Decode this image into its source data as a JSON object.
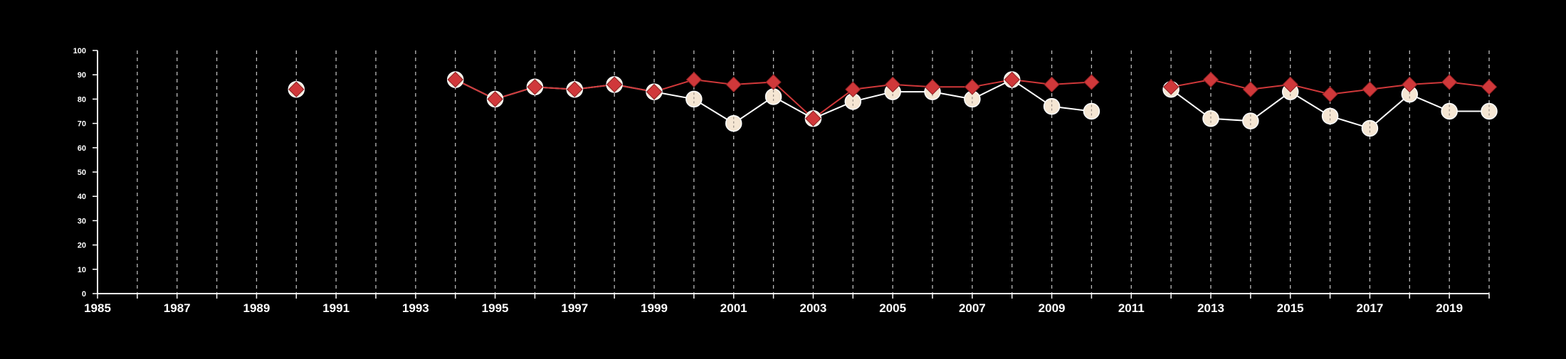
{
  "chart_data": {
    "type": "line",
    "background": "#000000",
    "grid": {
      "vertical": true,
      "horizontal": false,
      "style": "dashed",
      "color": "#bbbbbb"
    },
    "x_range": [
      1985,
      2020
    ],
    "ylim": [
      0,
      100
    ],
    "y_ticks": [
      0,
      10,
      20,
      30,
      40,
      50,
      60,
      70,
      80,
      90,
      100
    ],
    "x_minor_ticks": [
      1985,
      1986,
      1987,
      1988,
      1989,
      1990,
      1991,
      1992,
      1993,
      1994,
      1995,
      1996,
      1997,
      1998,
      1999,
      2000,
      2001,
      2002,
      2003,
      2004,
      2005,
      2006,
      2007,
      2008,
      2009,
      2010,
      2011,
      2012,
      2013,
      2014,
      2015,
      2016,
      2017,
      2018,
      2019,
      2020
    ],
    "x_labels": [
      1985,
      1987,
      1989,
      1991,
      1993,
      1995,
      1997,
      1999,
      2001,
      2003,
      2005,
      2007,
      2009,
      2011,
      2013,
      2015,
      2017,
      2019
    ],
    "series": [
      {
        "marker": "circle",
        "color": "#ffffff",
        "fill": "#f5e6d3",
        "points": [
          [
            1990,
            84
          ],
          [
            1994,
            88
          ],
          [
            1995,
            80
          ],
          [
            1996,
            85
          ],
          [
            1997,
            84
          ],
          [
            1998,
            86
          ],
          [
            1999,
            83
          ],
          [
            2000,
            80
          ],
          [
            2001,
            70
          ],
          [
            2002,
            81
          ],
          [
            2003,
            72
          ],
          [
            2004,
            79
          ],
          [
            2005,
            83
          ],
          [
            2006,
            83
          ],
          [
            2007,
            80
          ],
          [
            2008,
            88
          ],
          [
            2009,
            77
          ],
          [
            2010,
            75
          ],
          [
            2012,
            84
          ],
          [
            2013,
            72
          ],
          [
            2014,
            71
          ],
          [
            2015,
            83
          ],
          [
            2016,
            73
          ],
          [
            2017,
            68
          ],
          [
            2018,
            82
          ],
          [
            2019,
            75
          ],
          [
            2020,
            75
          ]
        ]
      },
      {
        "marker": "diamond",
        "color": "#d0383a",
        "fill": "#d0383a",
        "points": [
          [
            1990,
            84
          ],
          [
            1994,
            88
          ],
          [
            1995,
            80
          ],
          [
            1996,
            85
          ],
          [
            1997,
            84
          ],
          [
            1998,
            86
          ],
          [
            1999,
            83
          ],
          [
            2000,
            88
          ],
          [
            2001,
            86
          ],
          [
            2002,
            87
          ],
          [
            2003,
            72
          ],
          [
            2004,
            84
          ],
          [
            2005,
            86
          ],
          [
            2006,
            85
          ],
          [
            2007,
            85
          ],
          [
            2008,
            88
          ],
          [
            2009,
            86
          ],
          [
            2010,
            87
          ],
          [
            2012,
            85
          ],
          [
            2013,
            88
          ],
          [
            2014,
            84
          ],
          [
            2015,
            86
          ],
          [
            2016,
            82
          ],
          [
            2017,
            84
          ],
          [
            2018,
            86
          ],
          [
            2019,
            87
          ],
          [
            2020,
            85
          ]
        ]
      }
    ]
  }
}
